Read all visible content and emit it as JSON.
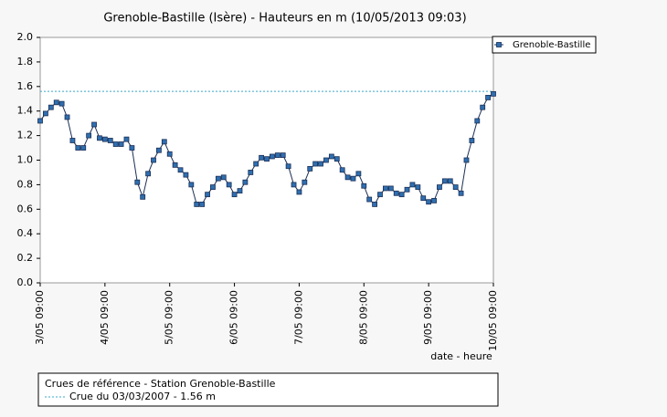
{
  "chart_data": {
    "type": "line",
    "title": "Grenoble-Bastille (Isère) - Hauteurs en m (10/05/2013 09:03)",
    "x_label": "date - heure",
    "categories": [
      "3/05 09:00",
      null,
      null,
      null,
      null,
      null,
      null,
      null,
      null,
      null,
      null,
      null,
      "4/05 09:00",
      null,
      null,
      null,
      null,
      null,
      null,
      null,
      null,
      null,
      null,
      null,
      "5/05 09:00",
      null,
      null,
      null,
      null,
      null,
      null,
      null,
      null,
      null,
      null,
      null,
      "6/05 09:00",
      null,
      null,
      null,
      null,
      null,
      null,
      null,
      null,
      null,
      null,
      null,
      "7/05 09:00",
      null,
      null,
      null,
      null,
      null,
      null,
      null,
      null,
      null,
      null,
      null,
      "8/05 09:00",
      null,
      null,
      null,
      null,
      null,
      null,
      null,
      null,
      null,
      null,
      null,
      "9/05 09:00",
      null,
      null,
      null,
      null,
      null,
      null,
      null,
      null,
      null,
      null,
      null,
      "10/05 09:00"
    ],
    "series": [
      {
        "name": "Grenoble-Bastille",
        "color": "#2f6fb0",
        "values": [
          1.32,
          1.38,
          1.43,
          1.47,
          1.46,
          1.35,
          1.16,
          1.1,
          1.1,
          1.2,
          1.29,
          1.18,
          1.17,
          1.16,
          1.13,
          1.13,
          1.17,
          1.1,
          0.82,
          0.7,
          0.89,
          1.0,
          1.08,
          1.15,
          1.05,
          0.96,
          0.92,
          0.88,
          0.8,
          0.64,
          0.64,
          0.72,
          0.78,
          0.85,
          0.86,
          0.8,
          0.72,
          0.75,
          0.82,
          0.9,
          0.97,
          1.02,
          1.01,
          1.03,
          1.04,
          1.04,
          0.95,
          0.8,
          0.74,
          0.82,
          0.93,
          0.97,
          0.97,
          1.0,
          1.03,
          1.01,
          0.92,
          0.86,
          0.85,
          0.89,
          0.79,
          0.68,
          0.64,
          0.72,
          0.77,
          0.77,
          0.73,
          0.72,
          0.76,
          0.8,
          0.78,
          0.69,
          0.66,
          0.67,
          0.78,
          0.83,
          0.83,
          0.78,
          0.73,
          1.0,
          1.16,
          1.32,
          1.43,
          1.51,
          1.54
        ]
      }
    ],
    "ylim": [
      0,
      2
    ],
    "yticks": [
      {
        "value": 0,
        "label": "0.0"
      },
      {
        "value": 0.2,
        "label": "0.2"
      },
      {
        "value": 0.4,
        "label": "0.4"
      },
      {
        "value": 0.6,
        "label": "0.6"
      },
      {
        "value": 0.8,
        "label": "0.8"
      },
      {
        "value": 1,
        "label": "1.0"
      },
      {
        "value": 1.2,
        "label": "1.2"
      },
      {
        "value": 1.4,
        "label": "1.4"
      },
      {
        "value": 1.6,
        "label": "1.6"
      },
      {
        "value": 1.8,
        "label": "1.8"
      },
      {
        "value": 2,
        "label": "2.0"
      }
    ],
    "reference_title": "Crues de référence - Station Grenoble-Bastille",
    "references": [
      {
        "label": "Crue du 03/03/2007 - 1.56 m",
        "value": 1.56,
        "color": "#39a8c8"
      }
    ]
  }
}
